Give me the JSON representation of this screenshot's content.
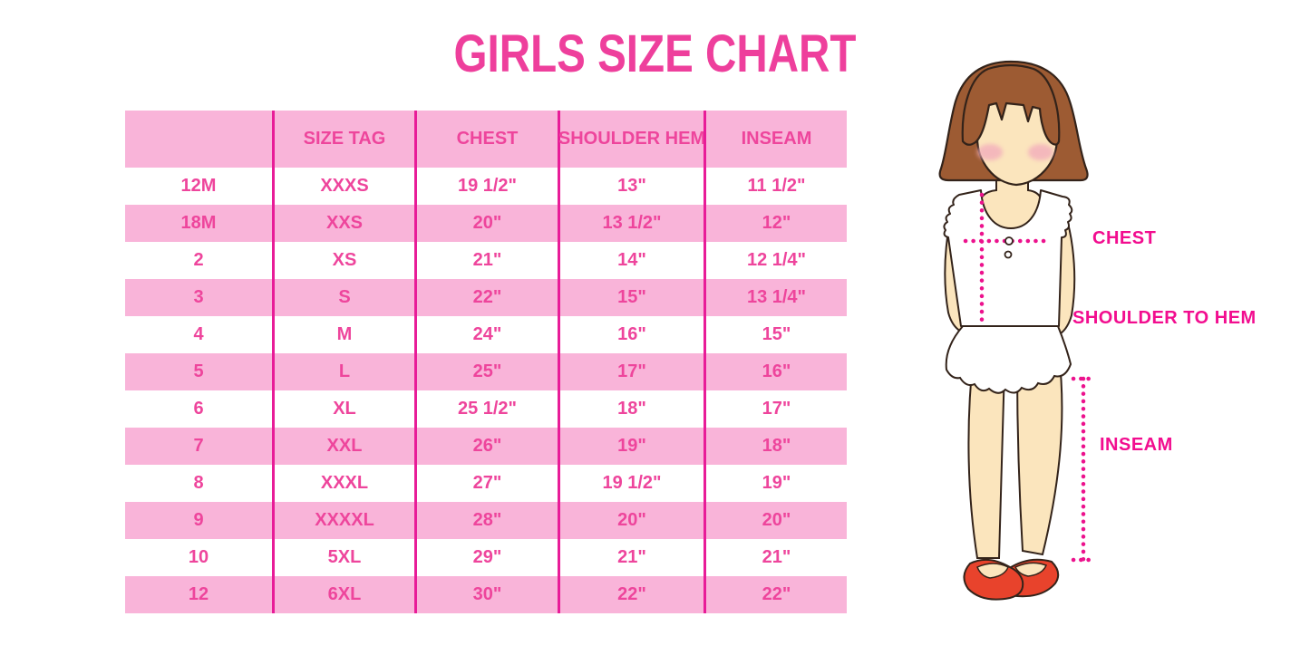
{
  "title": "GIRLS SIZE CHART",
  "chart_data": {
    "type": "table",
    "title": "GIRLS SIZE CHART",
    "columns": [
      "",
      "SIZE TAG",
      "CHEST",
      "SHOULDER HEM",
      "INSEAM"
    ],
    "rows": [
      [
        "12M",
        "XXXS",
        "19 1/2\"",
        "13\"",
        "11 1/2\""
      ],
      [
        "18M",
        "XXS",
        "20\"",
        "13 1/2\"",
        "12\""
      ],
      [
        "2",
        "XS",
        "21\"",
        "14\"",
        "12 1/4\""
      ],
      [
        "3",
        "S",
        "22\"",
        "15\"",
        "13 1/4\""
      ],
      [
        "4",
        "M",
        "24\"",
        "16\"",
        "15\""
      ],
      [
        "5",
        "L",
        "25\"",
        "17\"",
        "16\""
      ],
      [
        "6",
        "XL",
        "25 1/2\"",
        "18\"",
        "17\""
      ],
      [
        "7",
        "XXL",
        "26\"",
        "19\"",
        "18\""
      ],
      [
        "8",
        "XXXL",
        "27\"",
        "19 1/2\"",
        "19\""
      ],
      [
        "9",
        "XXXXL",
        "28\"",
        "20\"",
        "20\""
      ],
      [
        "10",
        "5XL",
        "29\"",
        "21\"",
        "21\""
      ],
      [
        "12",
        "6XL",
        "30\"",
        "22\"",
        "22\""
      ]
    ],
    "layout_hints": {
      "striped": "header and every second data row light pink, others white",
      "grid": "vertical magenta column separators only"
    }
  },
  "figure": {
    "description": "cartoon girl with brown bob hair, white ruffled sleeveless top, red mary-jane shoes, magenta dotted measurement guides",
    "labels": {
      "chest": "CHEST",
      "shoulder_to_hem": "SHOULDER TO HEM",
      "inseam": "INSEAM"
    }
  },
  "colors": {
    "title": "#EE3F9C",
    "table_text": "#EE459C",
    "row_pink": "#F9B4D9",
    "grid_line": "#E81C98",
    "label": "#F20D8F",
    "dotted_line": "#EC128D",
    "hair": "#9D5B33",
    "skin": "#FBE5BD",
    "blush": "#F3AEBC",
    "shoe": "#E8432C",
    "outline": "#33231A"
  }
}
